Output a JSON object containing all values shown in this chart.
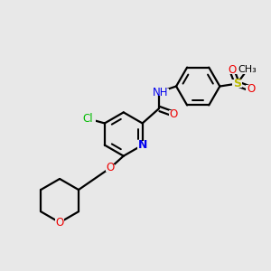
{
  "bg_color": "#e8e8e8",
  "atom_colors": {
    "C": "#000000",
    "N": "#0000ee",
    "O": "#ee0000",
    "S": "#bbbb00",
    "Cl": "#00bb00",
    "H": "#505050"
  },
  "bond_color": "#000000",
  "bond_width": 1.6,
  "fig_size": [
    3.0,
    3.0
  ],
  "dpi": 100
}
